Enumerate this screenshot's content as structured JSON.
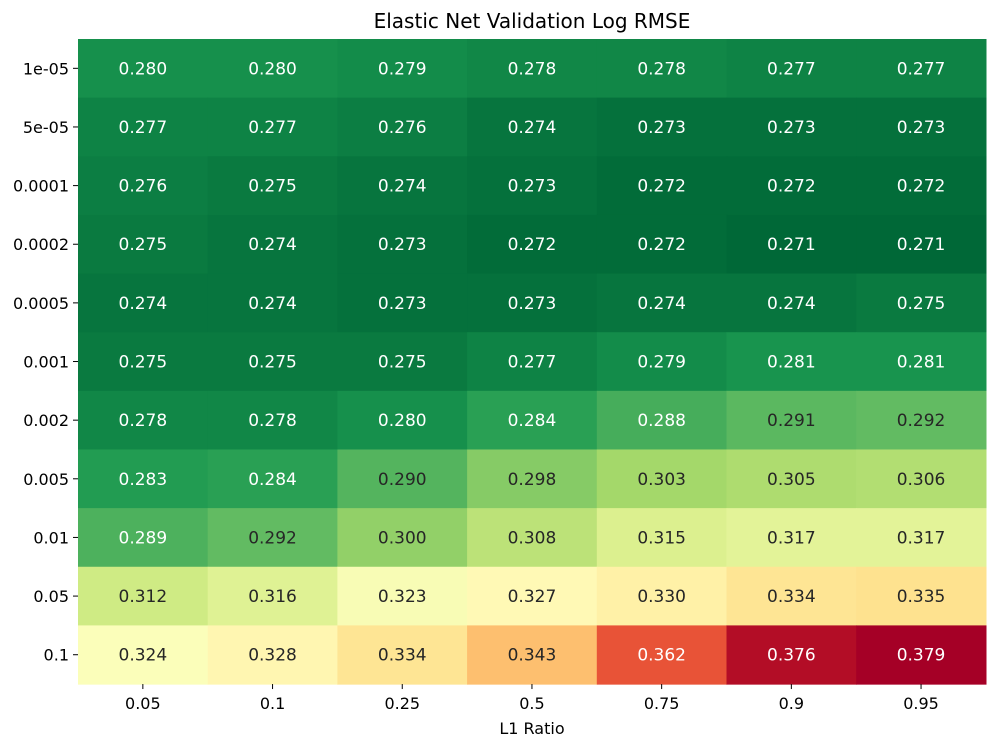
{
  "chart_data": {
    "type": "heatmap",
    "title": "Elastic Net Validation Log RMSE",
    "xlabel": "L1 Ratio",
    "ylabel": "",
    "x_categories": [
      "0.05",
      "0.1",
      "0.25",
      "0.5",
      "0.75",
      "0.9",
      "0.95"
    ],
    "y_categories": [
      "1e-05",
      "5e-05",
      "0.0001",
      "0.0002",
      "0.0005",
      "0.001",
      "0.002",
      "0.005",
      "0.01",
      "0.05",
      "0.1"
    ],
    "values": [
      [
        0.28,
        0.28,
        0.279,
        0.278,
        0.278,
        0.277,
        0.277
      ],
      [
        0.277,
        0.277,
        0.276,
        0.274,
        0.273,
        0.273,
        0.273
      ],
      [
        0.276,
        0.275,
        0.274,
        0.273,
        0.272,
        0.272,
        0.272
      ],
      [
        0.275,
        0.274,
        0.273,
        0.272,
        0.272,
        0.271,
        0.271
      ],
      [
        0.274,
        0.274,
        0.273,
        0.273,
        0.274,
        0.274,
        0.275
      ],
      [
        0.275,
        0.275,
        0.275,
        0.277,
        0.279,
        0.281,
        0.281
      ],
      [
        0.278,
        0.278,
        0.28,
        0.284,
        0.288,
        0.291,
        0.292
      ],
      [
        0.283,
        0.284,
        0.29,
        0.298,
        0.303,
        0.305,
        0.306
      ],
      [
        0.289,
        0.292,
        0.3,
        0.308,
        0.315,
        0.317,
        0.317
      ],
      [
        0.312,
        0.316,
        0.323,
        0.327,
        0.33,
        0.334,
        0.335
      ],
      [
        0.324,
        0.328,
        0.334,
        0.343,
        0.362,
        0.376,
        0.379
      ]
    ],
    "value_format": "3 decimals",
    "colormap": "RdYlGn_r",
    "vmin": 0.271,
    "vmax": 0.379,
    "grid": false,
    "legend": "none"
  }
}
